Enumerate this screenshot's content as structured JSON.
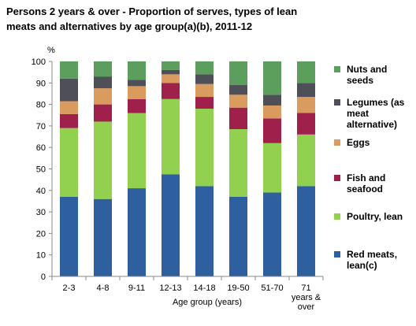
{
  "chart_data": {
    "type": "bar",
    "stacked": true,
    "title_lines": [
      "Persons  2 years & over  - Proportion of serves, types of lean",
      "meats and alternatives by age group(a)(b), 2011-12"
    ],
    "ylabel": "%",
    "xlabel": "Age group (years)",
    "ylim": [
      0,
      100
    ],
    "yticks": [
      0,
      10,
      20,
      30,
      40,
      50,
      60,
      70,
      80,
      90,
      100
    ],
    "categories": [
      "2-3",
      "4-8",
      "9-11",
      "12-13",
      "14-18",
      "19-50",
      "51-70",
      "71 years & over"
    ],
    "category_label_lines": [
      [
        "2-3"
      ],
      [
        "4-8"
      ],
      [
        "9-11"
      ],
      [
        "12-13"
      ],
      [
        "14-18"
      ],
      [
        "19-50"
      ],
      [
        "51-70"
      ],
      [
        "71",
        "years &",
        "over"
      ]
    ],
    "series": [
      {
        "name": "Red meats, lean(c)",
        "legend_lines": [
          "Red meats,",
          "lean(c)"
        ],
        "color": "#2e5f9e",
        "values": [
          37,
          36,
          41,
          47.5,
          42,
          37,
          39,
          42
        ]
      },
      {
        "name": "Poultry, lean",
        "legend_lines": [
          "Poultry, lean"
        ],
        "color": "#92d050",
        "values": [
          32,
          36,
          35,
          35,
          36,
          31.5,
          23,
          24
        ]
      },
      {
        "name": "Fish and seafood",
        "legend_lines": [
          "Fish and",
          "seafood"
        ],
        "color": "#a0204c",
        "values": [
          6.5,
          8,
          6.5,
          7.5,
          5.5,
          10,
          11.5,
          10
        ]
      },
      {
        "name": "Eggs",
        "legend_lines": [
          "Eggs"
        ],
        "color": "#d99b5e",
        "values": [
          6,
          7.5,
          6,
          4,
          6,
          6,
          6,
          7.5
        ]
      },
      {
        "name": "Legumes (as meat alternative)",
        "legend_lines": [
          "Legumes (as",
          "meat",
          "alternative)"
        ],
        "color": "#4f4f57",
        "values": [
          10.5,
          5.5,
          3,
          2,
          4.5,
          4.5,
          5,
          6.5
        ]
      },
      {
        "name": "Nuts and seeds",
        "legend_lines": [
          "Nuts and",
          "seeds"
        ],
        "color": "#5c9e5c",
        "values": [
          8,
          7,
          8.5,
          4,
          6,
          11,
          15.5,
          10
        ]
      }
    ],
    "legend_position": "right",
    "grid": false
  }
}
